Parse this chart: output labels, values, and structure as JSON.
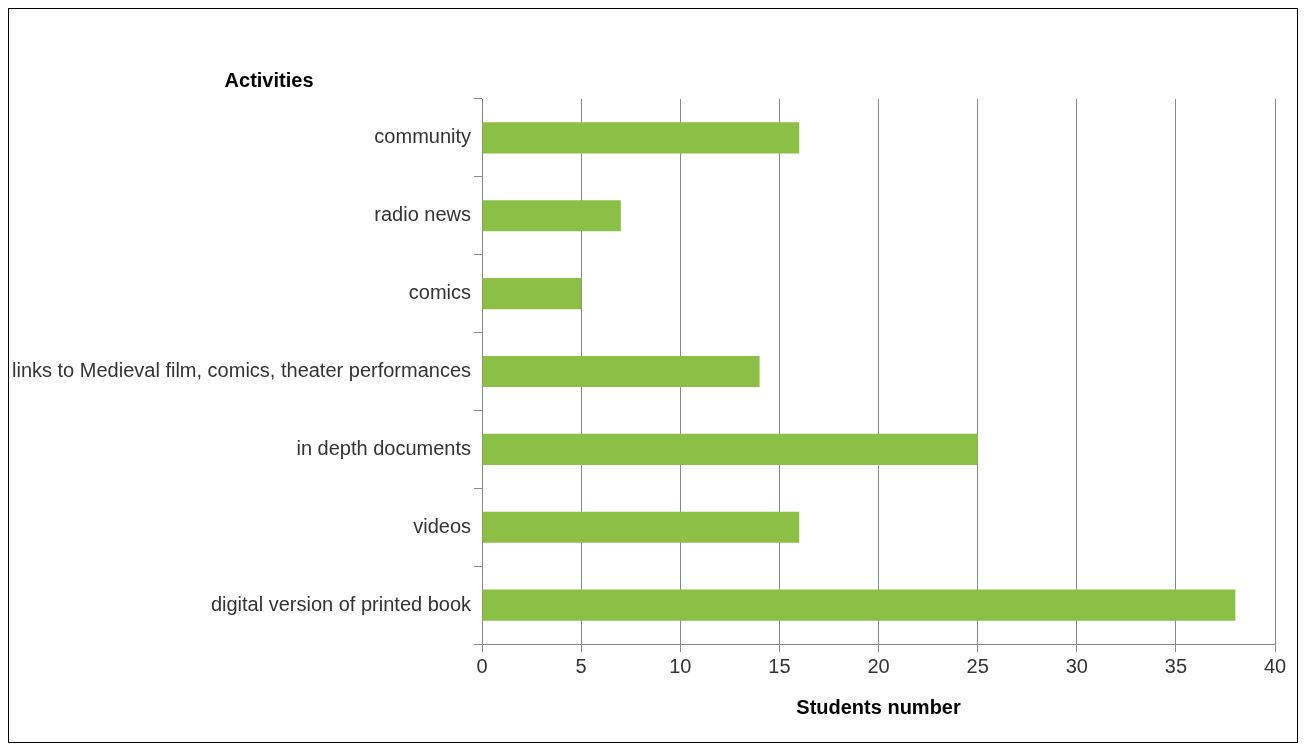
{
  "chart_data": {
    "type": "bar",
    "orientation": "horizontal",
    "ylabel": "Activities",
    "xlabel": "Students number",
    "categories": [
      "community",
      "radio news",
      "comics",
      "links to Medieval film, comics, theater performances",
      "in depth documents",
      "videos",
      "digital version of printed book"
    ],
    "values": [
      16,
      7,
      5,
      14,
      25,
      16,
      38
    ],
    "color": "#8cbf45",
    "xlim": [
      0,
      40
    ],
    "xticks": [
      0,
      5,
      10,
      15,
      20,
      25,
      30,
      35,
      40
    ],
    "grid": "x",
    "legend": false
  }
}
